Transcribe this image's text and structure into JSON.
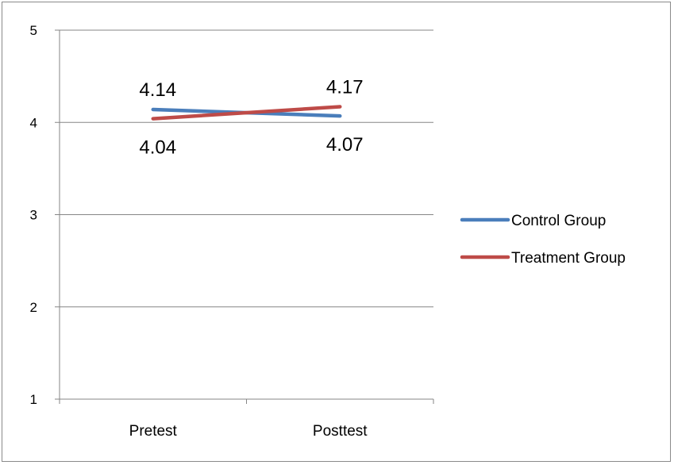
{
  "chart_data": {
    "type": "line",
    "categories": [
      "Pretest",
      "Posttest"
    ],
    "ylim": [
      1,
      5
    ],
    "yticks": [
      "1",
      "2",
      "3",
      "4",
      "5"
    ],
    "grid": "horizontal",
    "legend_position": "right",
    "series": [
      {
        "name": "Control Group",
        "values": [
          4.14,
          4.07
        ],
        "labels": [
          "4.14",
          "4.07"
        ],
        "color": "#4a7ebb",
        "label_side": [
          "above",
          "below"
        ]
      },
      {
        "name": "Treatment Group",
        "values": [
          4.04,
          4.17
        ],
        "labels": [
          "4.04",
          "4.17"
        ],
        "color": "#be4b48",
        "label_side": [
          "below",
          "above"
        ]
      }
    ]
  }
}
